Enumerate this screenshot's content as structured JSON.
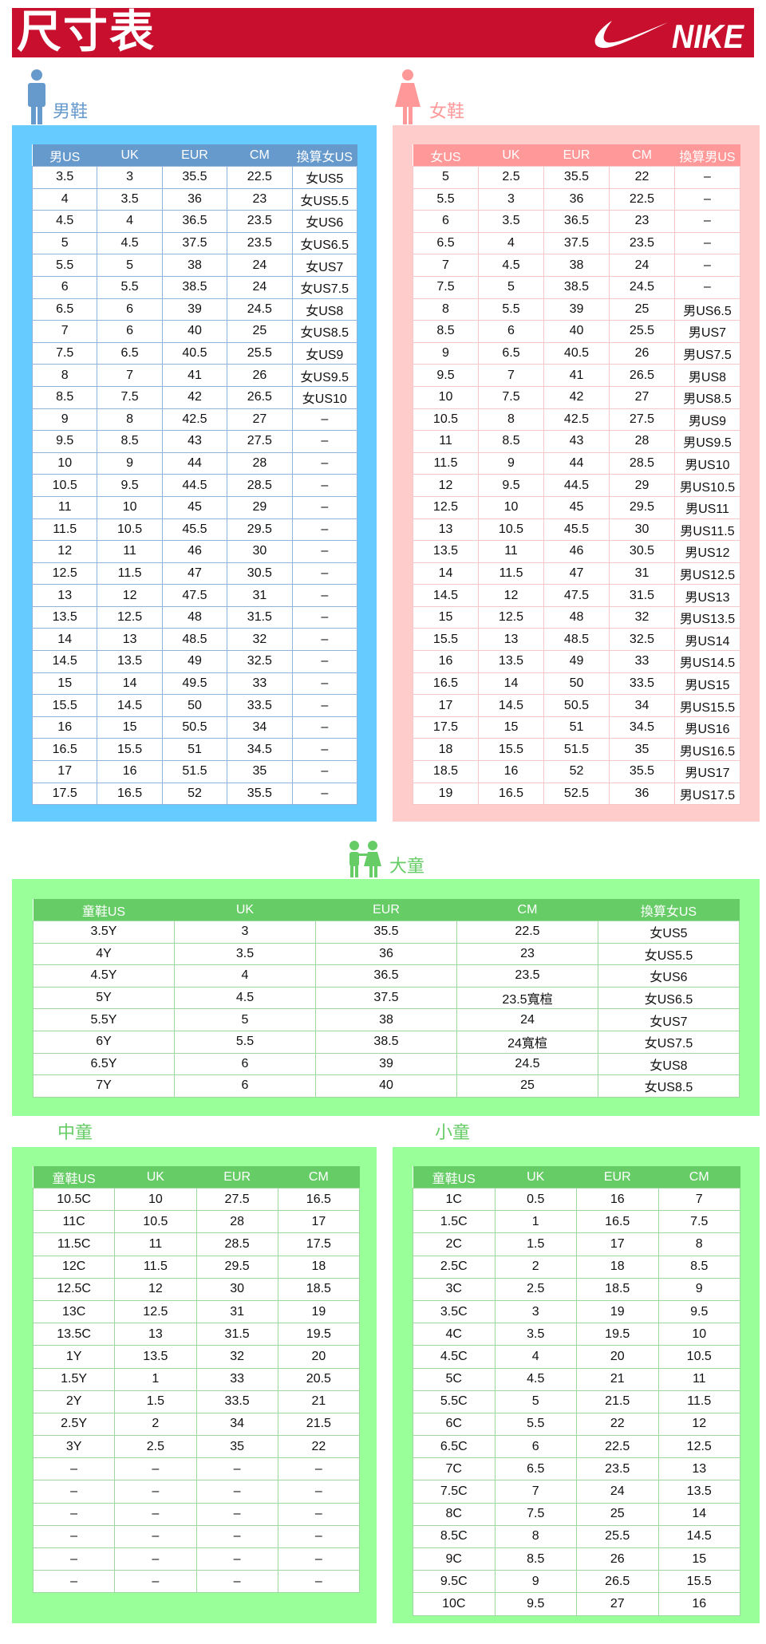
{
  "banner": {
    "title": "尺寸表",
    "logo": "NIKE"
  },
  "colors": {
    "banner": "#C8102E",
    "men_box": "#66CCFF",
    "men_header": "#6699CC",
    "women_box": "#FFCCCC",
    "women_header": "#FF9999",
    "kids_box": "#99FF99",
    "kids_header": "#66CC66"
  },
  "men": {
    "label": "男鞋",
    "icon": "man-icon",
    "headers": [
      "男US",
      "UK",
      "EUR",
      "CM",
      "換算女US"
    ],
    "rows": [
      [
        "3.5",
        "3",
        "35.5",
        "22.5",
        "女US5"
      ],
      [
        "4",
        "3.5",
        "36",
        "23",
        "女US5.5"
      ],
      [
        "4.5",
        "4",
        "36.5",
        "23.5",
        "女US6"
      ],
      [
        "5",
        "4.5",
        "37.5",
        "23.5",
        "女US6.5"
      ],
      [
        "5.5",
        "5",
        "38",
        "24",
        "女US7"
      ],
      [
        "6",
        "5.5",
        "38.5",
        "24",
        "女US7.5"
      ],
      [
        "6.5",
        "6",
        "39",
        "24.5",
        "女US8"
      ],
      [
        "7",
        "6",
        "40",
        "25",
        "女US8.5"
      ],
      [
        "7.5",
        "6.5",
        "40.5",
        "25.5",
        "女US9"
      ],
      [
        "8",
        "7",
        "41",
        "26",
        "女US9.5"
      ],
      [
        "8.5",
        "7.5",
        "42",
        "26.5",
        "女US10"
      ],
      [
        "9",
        "8",
        "42.5",
        "27",
        "–"
      ],
      [
        "9.5",
        "8.5",
        "43",
        "27.5",
        "–"
      ],
      [
        "10",
        "9",
        "44",
        "28",
        "–"
      ],
      [
        "10.5",
        "9.5",
        "44.5",
        "28.5",
        "–"
      ],
      [
        "11",
        "10",
        "45",
        "29",
        "–"
      ],
      [
        "11.5",
        "10.5",
        "45.5",
        "29.5",
        "–"
      ],
      [
        "12",
        "11",
        "46",
        "30",
        "–"
      ],
      [
        "12.5",
        "11.5",
        "47",
        "30.5",
        "–"
      ],
      [
        "13",
        "12",
        "47.5",
        "31",
        "–"
      ],
      [
        "13.5",
        "12.5",
        "48",
        "31.5",
        "–"
      ],
      [
        "14",
        "13",
        "48.5",
        "32",
        "–"
      ],
      [
        "14.5",
        "13.5",
        "49",
        "32.5",
        "–"
      ],
      [
        "15",
        "14",
        "49.5",
        "33",
        "–"
      ],
      [
        "15.5",
        "14.5",
        "50",
        "33.5",
        "–"
      ],
      [
        "16",
        "15",
        "50.5",
        "34",
        "–"
      ],
      [
        "16.5",
        "15.5",
        "51",
        "34.5",
        "–"
      ],
      [
        "17",
        "16",
        "51.5",
        "35",
        "–"
      ],
      [
        "17.5",
        "16.5",
        "52",
        "35.5",
        "–"
      ]
    ]
  },
  "women": {
    "label": "女鞋",
    "icon": "woman-icon",
    "headers": [
      "女US",
      "UK",
      "EUR",
      "CM",
      "換算男US"
    ],
    "rows": [
      [
        "5",
        "2.5",
        "35.5",
        "22",
        "–"
      ],
      [
        "5.5",
        "3",
        "36",
        "22.5",
        "–"
      ],
      [
        "6",
        "3.5",
        "36.5",
        "23",
        "–"
      ],
      [
        "6.5",
        "4",
        "37.5",
        "23.5",
        "–"
      ],
      [
        "7",
        "4.5",
        "38",
        "24",
        "–"
      ],
      [
        "7.5",
        "5",
        "38.5",
        "24.5",
        "–"
      ],
      [
        "8",
        "5.5",
        "39",
        "25",
        "男US6.5"
      ],
      [
        "8.5",
        "6",
        "40",
        "25.5",
        "男US7"
      ],
      [
        "9",
        "6.5",
        "40.5",
        "26",
        "男US7.5"
      ],
      [
        "9.5",
        "7",
        "41",
        "26.5",
        "男US8"
      ],
      [
        "10",
        "7.5",
        "42",
        "27",
        "男US8.5"
      ],
      [
        "10.5",
        "8",
        "42.5",
        "27.5",
        "男US9"
      ],
      [
        "11",
        "8.5",
        "43",
        "28",
        "男US9.5"
      ],
      [
        "11.5",
        "9",
        "44",
        "28.5",
        "男US10"
      ],
      [
        "12",
        "9.5",
        "44.5",
        "29",
        "男US10.5"
      ],
      [
        "12.5",
        "10",
        "45",
        "29.5",
        "男US11"
      ],
      [
        "13",
        "10.5",
        "45.5",
        "30",
        "男US11.5"
      ],
      [
        "13.5",
        "11",
        "46",
        "30.5",
        "男US12"
      ],
      [
        "14",
        "11.5",
        "47",
        "31",
        "男US12.5"
      ],
      [
        "14.5",
        "12",
        "47.5",
        "31.5",
        "男US13"
      ],
      [
        "15",
        "12.5",
        "48",
        "32",
        "男US13.5"
      ],
      [
        "15.5",
        "13",
        "48.5",
        "32.5",
        "男US14"
      ],
      [
        "16",
        "13.5",
        "49",
        "33",
        "男US14.5"
      ],
      [
        "16.5",
        "14",
        "50",
        "33.5",
        "男US15"
      ],
      [
        "17",
        "14.5",
        "50.5",
        "34",
        "男US15.5"
      ],
      [
        "17.5",
        "15",
        "51",
        "34.5",
        "男US16"
      ],
      [
        "18",
        "15.5",
        "51.5",
        "35",
        "男US16.5"
      ],
      [
        "18.5",
        "16",
        "52",
        "35.5",
        "男US17"
      ],
      [
        "19",
        "16.5",
        "52.5",
        "36",
        "男US17.5"
      ]
    ]
  },
  "big_kids": {
    "label": "大童",
    "icon": "kids-icon",
    "headers": [
      "童鞋US",
      "UK",
      "EUR",
      "CM",
      "換算女US"
    ],
    "rows": [
      [
        "3.5Y",
        "3",
        "35.5",
        "22.5",
        "女US5"
      ],
      [
        "4Y",
        "3.5",
        "36",
        "23",
        "女US5.5"
      ],
      [
        "4.5Y",
        "4",
        "36.5",
        "23.5",
        "女US6"
      ],
      [
        "5Y",
        "4.5",
        "37.5",
        "23.5寬楦",
        "女US6.5"
      ],
      [
        "5.5Y",
        "5",
        "38",
        "24",
        "女US7"
      ],
      [
        "6Y",
        "5.5",
        "38.5",
        "24寬楦",
        "女US7.5"
      ],
      [
        "6.5Y",
        "6",
        "39",
        "24.5",
        "女US8"
      ],
      [
        "7Y",
        "6",
        "40",
        "25",
        "女US8.5"
      ]
    ]
  },
  "mid_kids": {
    "label": "中童",
    "headers": [
      "童鞋US",
      "UK",
      "EUR",
      "CM"
    ],
    "rows": [
      [
        "10.5C",
        "10",
        "27.5",
        "16.5"
      ],
      [
        "11C",
        "10.5",
        "28",
        "17"
      ],
      [
        "11.5C",
        "11",
        "28.5",
        "17.5"
      ],
      [
        "12C",
        "11.5",
        "29.5",
        "18"
      ],
      [
        "12.5C",
        "12",
        "30",
        "18.5"
      ],
      [
        "13C",
        "12.5",
        "31",
        "19"
      ],
      [
        "13.5C",
        "13",
        "31.5",
        "19.5"
      ],
      [
        "1Y",
        "13.5",
        "32",
        "20"
      ],
      [
        "1.5Y",
        "1",
        "33",
        "20.5"
      ],
      [
        "2Y",
        "1.5",
        "33.5",
        "21"
      ],
      [
        "2.5Y",
        "2",
        "34",
        "21.5"
      ],
      [
        "3Y",
        "2.5",
        "35",
        "22"
      ],
      [
        "–",
        "–",
        "–",
        "–"
      ],
      [
        "–",
        "–",
        "–",
        "–"
      ],
      [
        "–",
        "–",
        "–",
        "–"
      ],
      [
        "–",
        "–",
        "–",
        "–"
      ],
      [
        "–",
        "–",
        "–",
        "–"
      ],
      [
        "–",
        "–",
        "–",
        "–"
      ]
    ]
  },
  "small_kids": {
    "label": "小童",
    "headers": [
      "童鞋US",
      "UK",
      "EUR",
      "CM"
    ],
    "rows": [
      [
        "1C",
        "0.5",
        "16",
        "7"
      ],
      [
        "1.5C",
        "1",
        "16.5",
        "7.5"
      ],
      [
        "2C",
        "1.5",
        "17",
        "8"
      ],
      [
        "2.5C",
        "2",
        "18",
        "8.5"
      ],
      [
        "3C",
        "2.5",
        "18.5",
        "9"
      ],
      [
        "3.5C",
        "3",
        "19",
        "9.5"
      ],
      [
        "4C",
        "3.5",
        "19.5",
        "10"
      ],
      [
        "4.5C",
        "4",
        "20",
        "10.5"
      ],
      [
        "5C",
        "4.5",
        "21",
        "11"
      ],
      [
        "5.5C",
        "5",
        "21.5",
        "11.5"
      ],
      [
        "6C",
        "5.5",
        "22",
        "12"
      ],
      [
        "6.5C",
        "6",
        "22.5",
        "12.5"
      ],
      [
        "7C",
        "6.5",
        "23.5",
        "13"
      ],
      [
        "7.5C",
        "7",
        "24",
        "13.5"
      ],
      [
        "8C",
        "7.5",
        "25",
        "14"
      ],
      [
        "8.5C",
        "8",
        "25.5",
        "14.5"
      ],
      [
        "9C",
        "8.5",
        "26",
        "15"
      ],
      [
        "9.5C",
        "9",
        "26.5",
        "15.5"
      ],
      [
        "10C",
        "9.5",
        "27",
        "16"
      ]
    ]
  }
}
